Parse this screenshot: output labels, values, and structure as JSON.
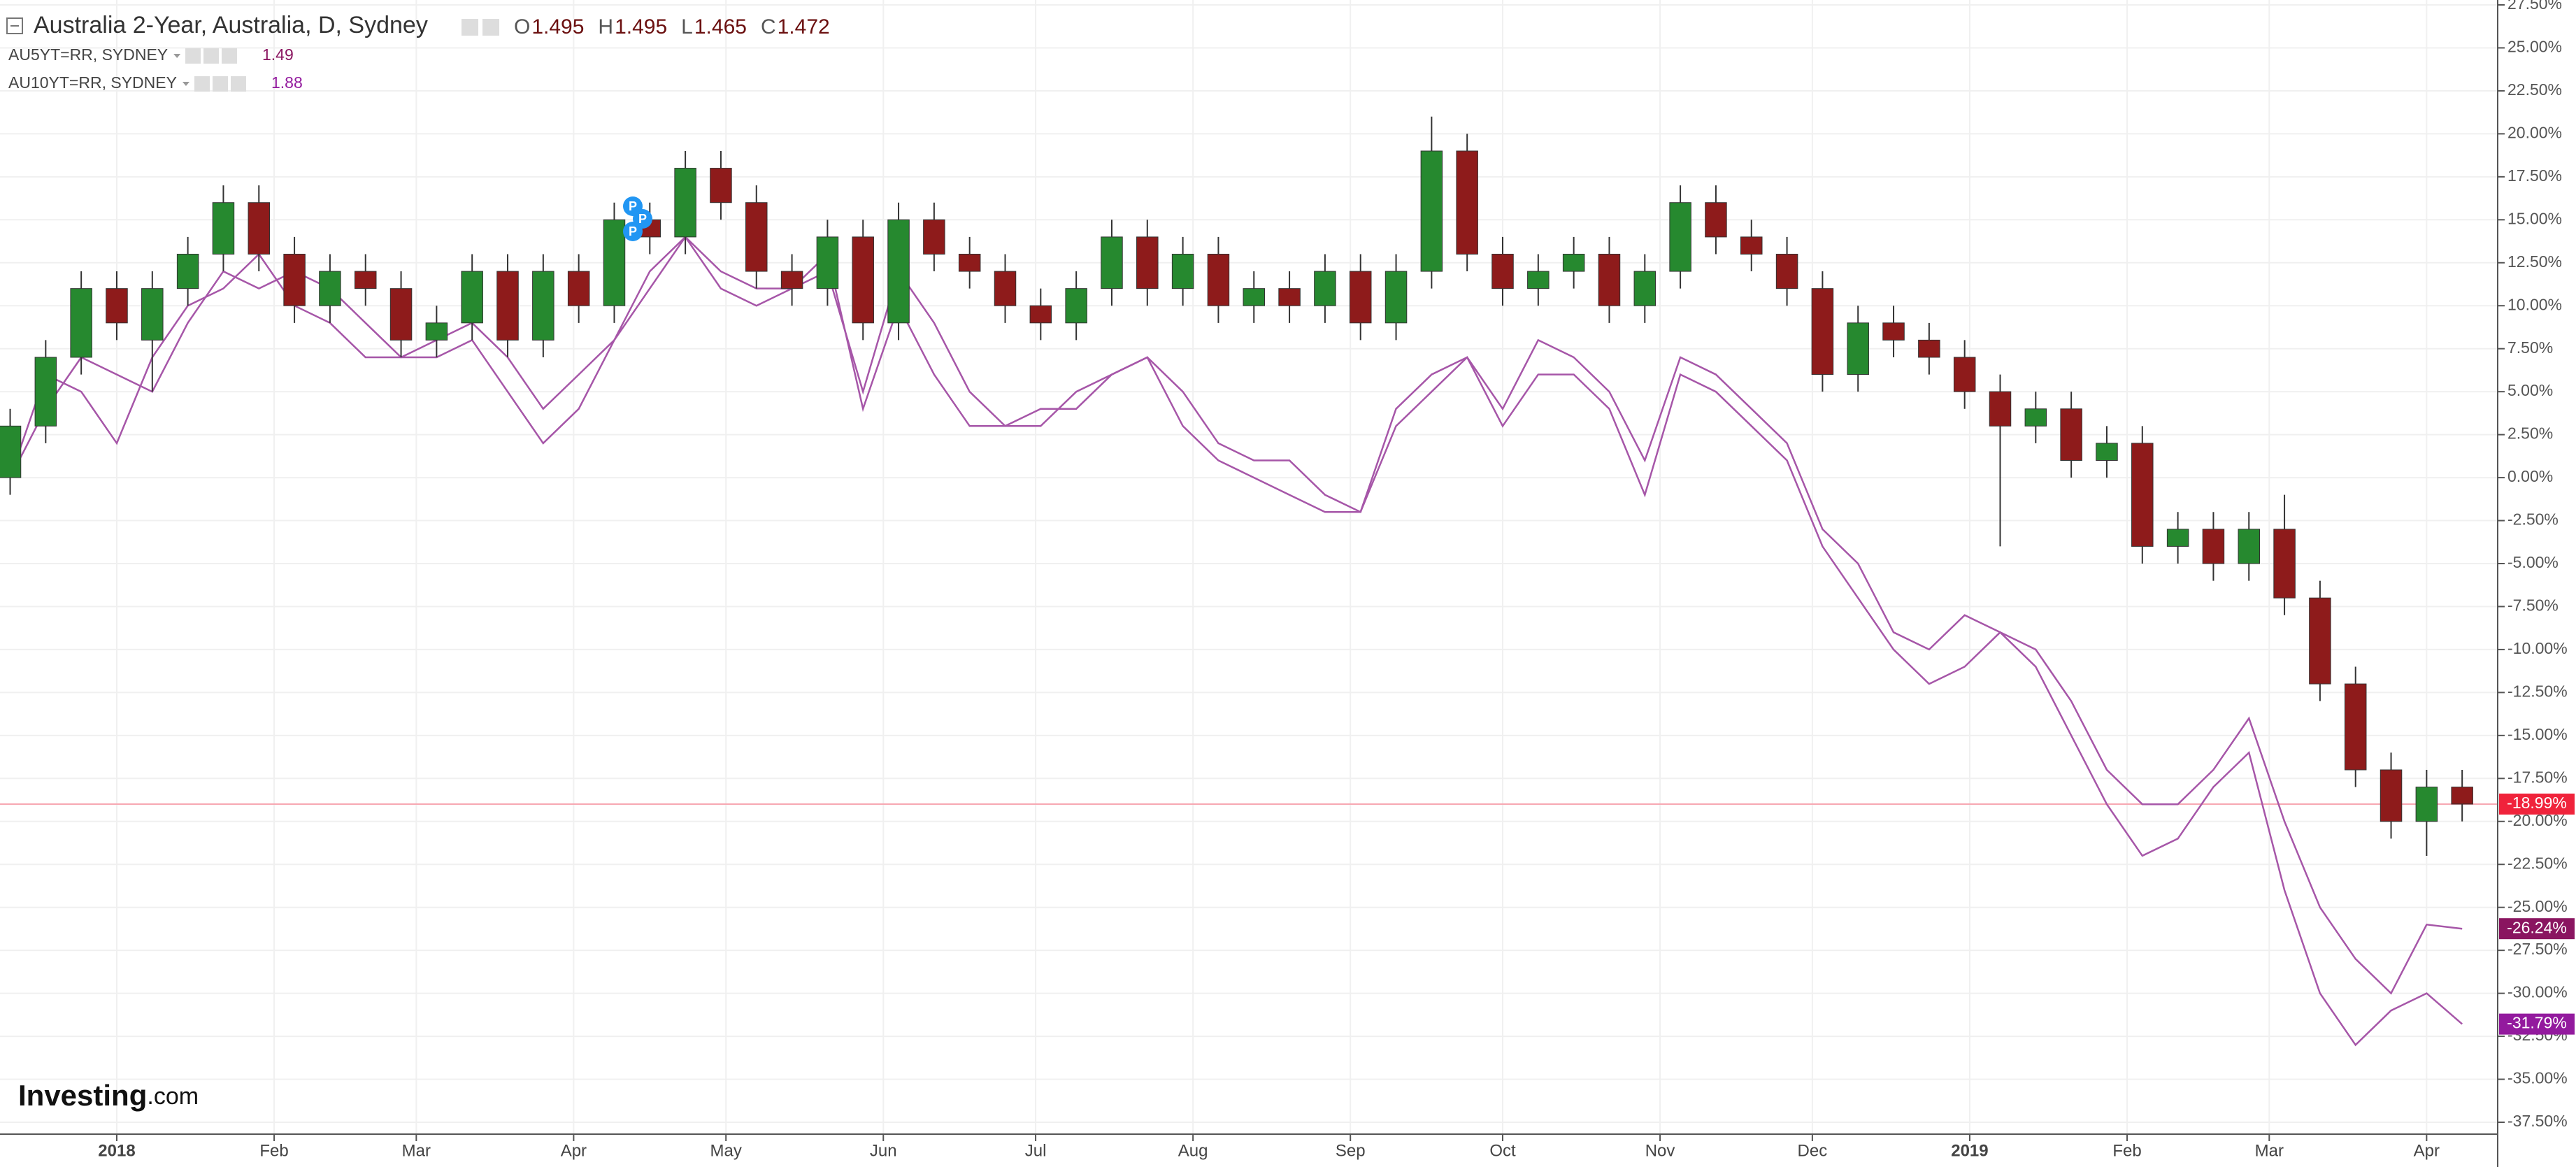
{
  "chart_data": {
    "type": "candlestick",
    "title": "Australia 2-Year, Australia, D, Sydney",
    "ohlc": [
      {
        "label": "O",
        "value": 1.495
      },
      {
        "label": "H",
        "value": 1.495
      },
      {
        "label": "L",
        "value": 1.465
      },
      {
        "label": "C",
        "value": 1.472
      }
    ],
    "logo": {
      "brand": "Investing",
      "suffix": ".com"
    },
    "markers": [
      "P",
      "P",
      "P"
    ],
    "x": [
      2,
      9,
      16,
      23,
      30,
      37,
      44,
      51,
      58,
      65,
      72,
      79,
      86,
      93,
      100,
      107,
      114,
      121,
      128,
      135,
      142,
      149,
      156,
      163,
      170,
      177,
      184,
      191,
      198,
      205,
      212,
      219,
      226,
      233,
      240,
      247,
      254,
      261,
      268,
      275,
      282,
      289,
      296,
      303,
      310,
      317,
      324,
      331,
      338,
      345,
      352,
      359,
      366,
      373,
      380,
      387,
      394,
      401,
      408,
      415,
      422,
      429,
      436,
      443,
      450,
      457,
      464,
      471,
      478,
      485
    ],
    "candles": {
      "up_color": "#26892f",
      "down_color": "#8e1b1b",
      "open": [
        0,
        3,
        7,
        11,
        8,
        11,
        13,
        16,
        13,
        10,
        12,
        11,
        8,
        9,
        12,
        8,
        12,
        10,
        15,
        14,
        18,
        16,
        12,
        11,
        14,
        9,
        15,
        13,
        12,
        10,
        9,
        11,
        14,
        11,
        13,
        10,
        11,
        10,
        12,
        9,
        12,
        19,
        13,
        11,
        12,
        13,
        10,
        12,
        16,
        14,
        13,
        11,
        6,
        9,
        8,
        7,
        5,
        3,
        4,
        1,
        2,
        -4,
        -3,
        -5,
        -3,
        -7,
        -12,
        -17,
        -20,
        -18
      ],
      "high": [
        4,
        8,
        12,
        12,
        12,
        14,
        17,
        17,
        14,
        13,
        13,
        12,
        10,
        13,
        13,
        13,
        13,
        16,
        16,
        19,
        19,
        17,
        13,
        15,
        15,
        16,
        16,
        14,
        13,
        11,
        12,
        15,
        15,
        14,
        14,
        12,
        12,
        13,
        13,
        13,
        21,
        20,
        14,
        13,
        14,
        14,
        13,
        17,
        17,
        15,
        14,
        12,
        10,
        10,
        9,
        8,
        6,
        5,
        5,
        3,
        3,
        -2,
        -2,
        -2,
        -1,
        -6,
        -11,
        -16,
        -17,
        -17
      ],
      "low": [
        -1,
        2,
        6,
        8,
        5,
        10,
        12,
        12,
        9,
        9,
        10,
        7,
        7,
        8,
        7,
        7,
        9,
        9,
        13,
        13,
        15,
        11,
        10,
        10,
        8,
        8,
        12,
        11,
        9,
        8,
        8,
        10,
        10,
        10,
        9,
        9,
        9,
        9,
        8,
        8,
        11,
        12,
        10,
        10,
        11,
        9,
        9,
        11,
        13,
        12,
        10,
        5,
        5,
        7,
        6,
        4,
        -4,
        2,
        0,
        0,
        -5,
        -5,
        -6,
        -6,
        -8,
        -13,
        -18,
        -21,
        -22,
        -20
      ],
      "close": [
        3,
        7,
        11,
        9,
        11,
        13,
        16,
        13,
        10,
        12,
        11,
        8,
        9,
        12,
        8,
        12,
        10,
        15,
        14,
        18,
        16,
        12,
        11,
        14,
        9,
        15,
        13,
        12,
        10,
        9,
        11,
        14,
        11,
        13,
        10,
        11,
        10,
        12,
        9,
        12,
        19,
        13,
        11,
        12,
        13,
        10,
        12,
        16,
        14,
        13,
        11,
        6,
        9,
        8,
        7,
        5,
        3,
        4,
        1,
        2,
        -4,
        -3,
        -5,
        -3,
        -7,
        -12,
        -17,
        -20,
        -18,
        -18.99
      ],
      "last_label": "-18.99%",
      "last_color": "#f0233b"
    },
    "series": [
      {
        "name": "AU5YT=RR, SYDNEY",
        "last": 1.49,
        "color": "#a656a8",
        "label_color": "#8a1560",
        "last_label": "-26.24%",
        "values": [
          0,
          4,
          7,
          6,
          5,
          9,
          12,
          11,
          12,
          11,
          9,
          7,
          8,
          9,
          7,
          4,
          6,
          8,
          12,
          14,
          12,
          11,
          11,
          12,
          5,
          12,
          9,
          5,
          3,
          4,
          4,
          6,
          7,
          5,
          2,
          1,
          1,
          -1,
          -2,
          3,
          5,
          7,
          4,
          8,
          7,
          5,
          1,
          7,
          6,
          4,
          2,
          -3,
          -5,
          -9,
          -10,
          -8,
          -9,
          -10,
          -13,
          -17,
          -19,
          -19,
          -17,
          -14,
          -20,
          -25,
          -28,
          -30,
          -26,
          -26.24
        ]
      },
      {
        "name": "AU10YT=RR, SYDNEY",
        "last": 1.88,
        "color": "#a656a8",
        "label_color": "#931a9e",
        "last_label": "-31.79%",
        "values": [
          0,
          6,
          5,
          2,
          7,
          10,
          11,
          13,
          10,
          9,
          7,
          7,
          7,
          8,
          5,
          2,
          4,
          8,
          11,
          14,
          11,
          10,
          11,
          13,
          4,
          10,
          6,
          3,
          3,
          3,
          5,
          6,
          7,
          3,
          1,
          0,
          -1,
          -2,
          -2,
          4,
          6,
          7,
          3,
          6,
          6,
          4,
          -1,
          6,
          5,
          3,
          1,
          -4,
          -7,
          -10,
          -12,
          -11,
          -9,
          -11,
          -15,
          -19,
          -22,
          -21,
          -18,
          -16,
          -24,
          -30,
          -33,
          -31,
          -30,
          -31.79
        ]
      }
    ],
    "xlim": [
      0,
      492
    ],
    "xticks": [
      {
        "value": 23,
        "label": "2018"
      },
      {
        "value": 54,
        "label": "Feb"
      },
      {
        "value": 82,
        "label": "Mar"
      },
      {
        "value": 113,
        "label": "Apr"
      },
      {
        "value": 143,
        "label": "May"
      },
      {
        "value": 174,
        "label": "Jun"
      },
      {
        "value": 204,
        "label": "Jul"
      },
      {
        "value": 235,
        "label": "Aug"
      },
      {
        "value": 266,
        "label": "Sep"
      },
      {
        "value": 296,
        "label": "Oct"
      },
      {
        "value": 327,
        "label": "Nov"
      },
      {
        "value": 357,
        "label": "Dec"
      },
      {
        "value": 388,
        "label": "2019"
      },
      {
        "value": 419,
        "label": "Feb"
      },
      {
        "value": 447,
        "label": "Mar"
      },
      {
        "value": 478,
        "label": "Apr"
      }
    ],
    "ylim": [
      -37.5,
      27.5
    ],
    "yticks": [
      {
        "value": 27.5,
        "label": "27.50%"
      },
      {
        "value": 25,
        "label": "25.00%"
      },
      {
        "value": 22.5,
        "label": "22.50%"
      },
      {
        "value": 20,
        "label": "20.00%"
      },
      {
        "value": 17.5,
        "label": "17.50%"
      },
      {
        "value": 15,
        "label": "15.00%"
      },
      {
        "value": 12.5,
        "label": "12.50%"
      },
      {
        "value": 10,
        "label": "10.00%"
      },
      {
        "value": 7.5,
        "label": "7.50%"
      },
      {
        "value": 5,
        "label": "5.00%"
      },
      {
        "value": 2.5,
        "label": "2.50%"
      },
      {
        "value": 0,
        "label": "0.00%"
      },
      {
        "value": -2.5,
        "label": "-2.50%"
      },
      {
        "value": -5,
        "label": "-5.00%"
      },
      {
        "value": -7.5,
        "label": "-7.50%"
      },
      {
        "value": -10,
        "label": "-10.00%"
      },
      {
        "value": -12.5,
        "label": "-12.50%"
      },
      {
        "value": -15,
        "label": "-15.00%"
      },
      {
        "value": -17.5,
        "label": "-17.50%"
      },
      {
        "value": -20,
        "label": "-20.00%"
      },
      {
        "value": -22.5,
        "label": "-22.50%"
      },
      {
        "value": -25,
        "label": "-25.00%"
      },
      {
        "value": -27.5,
        "label": "-27.50%"
      },
      {
        "value": -30,
        "label": "-30.00%"
      },
      {
        "value": -32.5,
        "label": "-32.50%"
      },
      {
        "value": -35,
        "label": "-35.00%"
      },
      {
        "value": -37.5,
        "label": "-37.50%"
      }
    ],
    "grid": true
  }
}
